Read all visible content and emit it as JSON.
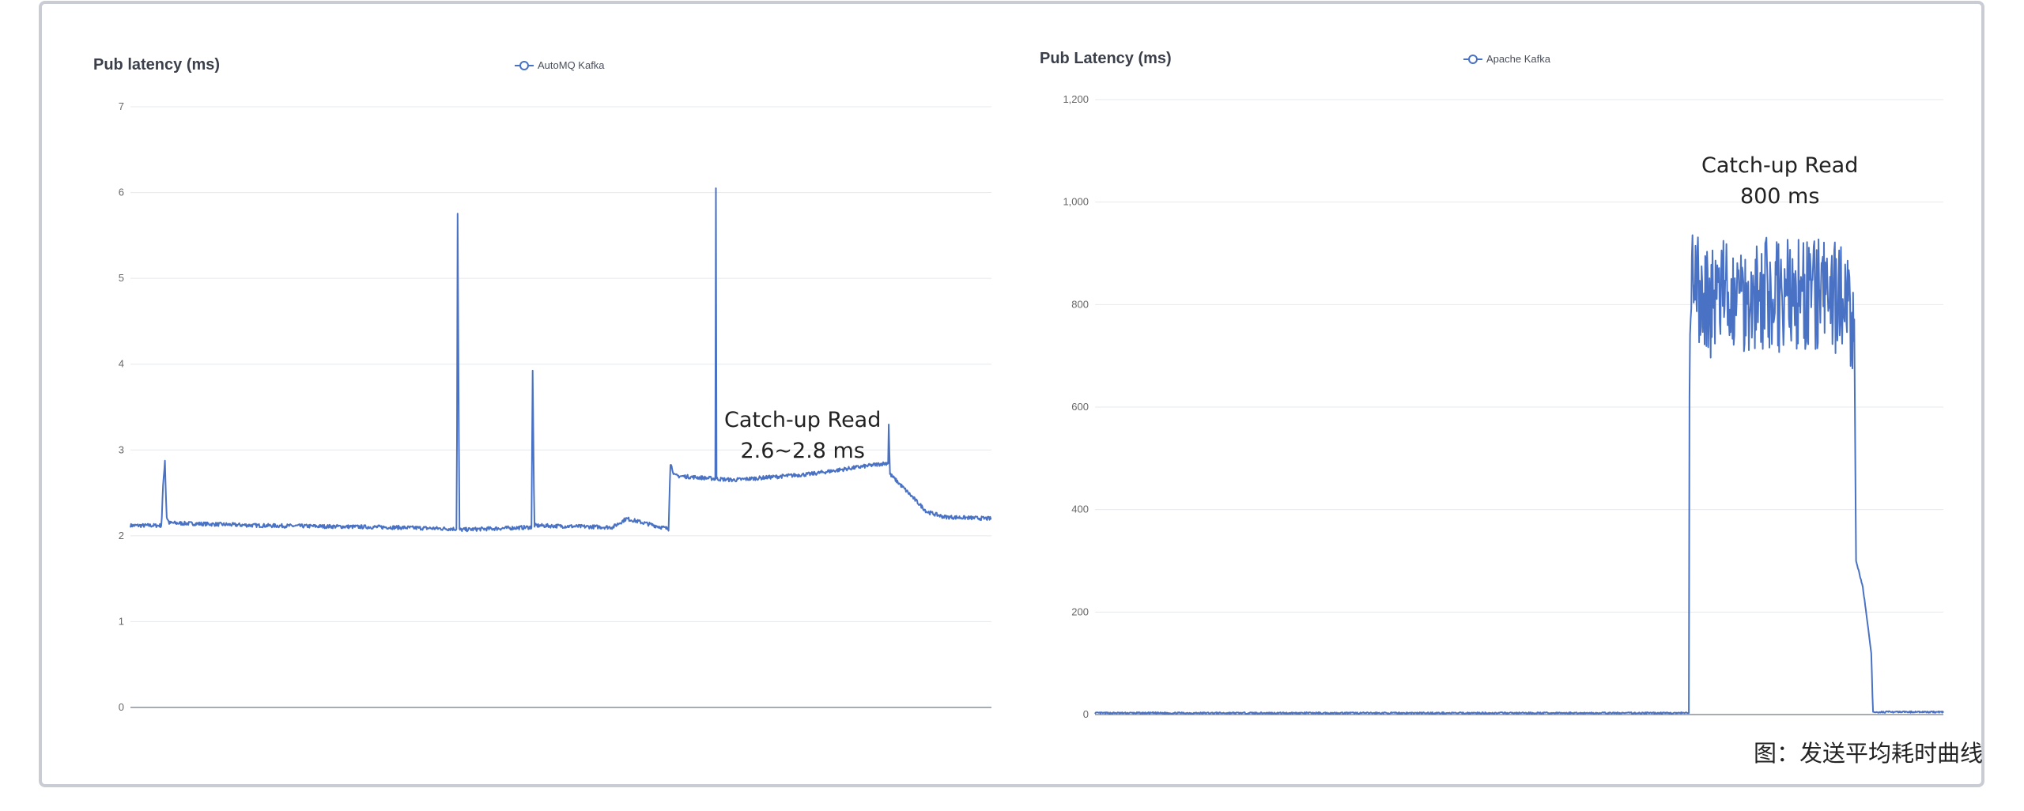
{
  "chart_data": [
    {
      "type": "line",
      "title": "Pub latency (ms)",
      "series": [
        {
          "name": "AutoMQ Kafka",
          "color": "#4a72c4"
        }
      ],
      "ylim": [
        0,
        7
      ],
      "yticks": [
        "0",
        "1",
        "2",
        "3",
        "4",
        "5",
        "6",
        "7"
      ],
      "grid": true,
      "legend_position": "top-center",
      "x_range": [
        0,
        1000
      ],
      "profile": [
        [
          0,
          2.12
        ],
        [
          36,
          2.12
        ],
        [
          38,
          2.6
        ],
        [
          40,
          2.88
        ],
        [
          42,
          2.22
        ],
        [
          45,
          2.15
        ],
        [
          150,
          2.12
        ],
        [
          300,
          2.1
        ],
        [
          379,
          2.08
        ],
        [
          380,
          5.75
        ],
        [
          382,
          2.07
        ],
        [
          466,
          2.1
        ],
        [
          467,
          4.05
        ],
        [
          469,
          2.12
        ],
        [
          560,
          2.1
        ],
        [
          576,
          2.2
        ],
        [
          625,
          2.08
        ],
        [
          627,
          2.85
        ],
        [
          632,
          2.7
        ],
        [
          700,
          2.65
        ],
        [
          790,
          2.72
        ],
        [
          880,
          2.85
        ],
        [
          880.5,
          3.4
        ],
        [
          882,
          2.72
        ],
        [
          925,
          2.28
        ],
        [
          945,
          2.22
        ],
        [
          1000,
          2.2
        ]
      ],
      "spikes": [
        [
          680,
          6.05
        ]
      ],
      "annotation": [
        "Catch-up Read",
        "2.6~2.8 ms"
      ]
    },
    {
      "type": "line",
      "title": "Pub Latency (ms)",
      "series": [
        {
          "name": "Apache Kafka",
          "color": "#4a72c4"
        }
      ],
      "ylim": [
        0,
        1200
      ],
      "yticks": [
        "0",
        "200",
        "400",
        "600",
        "800",
        "1,000",
        "1,200"
      ],
      "grid": true,
      "legend_position": "top-center",
      "x_range": [
        0,
        1000
      ],
      "profile": [
        [
          0,
          3
        ],
        [
          700,
          3
        ],
        [
          700.5,
          580
        ],
        [
          702,
          840
        ],
        [
          718,
          810
        ],
        [
          780,
          820
        ],
        [
          880,
          815
        ],
        [
          895,
          770
        ],
        [
          897,
          300
        ],
        [
          905,
          250
        ],
        [
          915,
          120
        ],
        [
          917,
          5
        ],
        [
          1000,
          5
        ]
      ],
      "annotation": [
        "Catch-up Read",
        "800 ms"
      ]
    }
  ],
  "caption": "图：发送平均耗时曲线"
}
